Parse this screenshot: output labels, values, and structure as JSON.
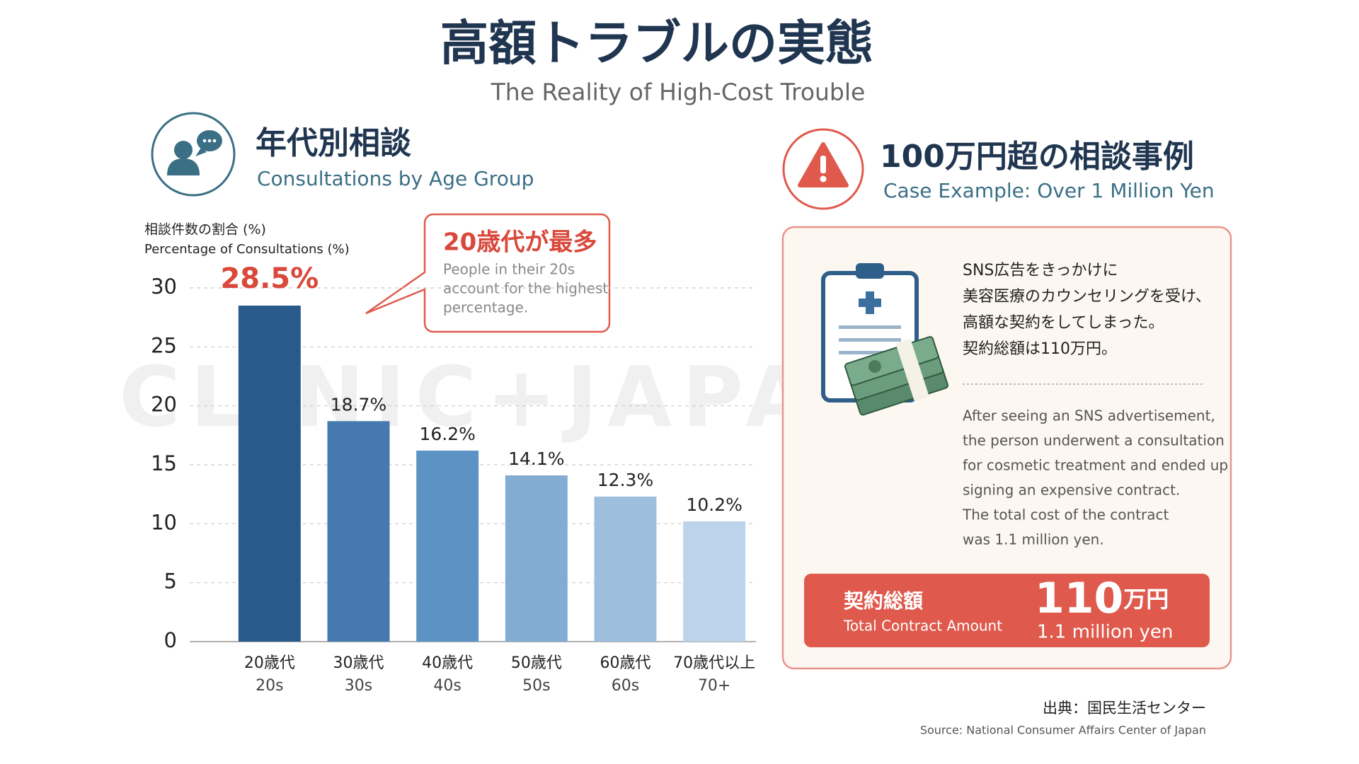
{
  "title": "高額トラブルの実態",
  "subtitle": "The Reality of High-Cost Trouble",
  "watermark": "CLINIC+JAPAN.NET",
  "left_heading": {
    "title": "年代別相談",
    "subtitle": "Consultations by Age Group"
  },
  "chart_data": {
    "type": "bar",
    "ylabel": "相談件数の割合 (%)",
    "ylabel_en": "Percentage of Consultations (%)",
    "categories": [
      "20歳代",
      "30歳代",
      "40歳代",
      "50歳代",
      "60歳代",
      "70歳代以上"
    ],
    "categories_en": [
      "20s",
      "30s",
      "40s",
      "50s",
      "60s",
      "70+"
    ],
    "values": [
      28.5,
      18.7,
      16.2,
      14.1,
      12.3,
      10.2
    ],
    "value_labels": [
      "28.5%",
      "18.7%",
      "16.2%",
      "14.1%",
      "12.3%",
      "10.2%"
    ],
    "colors": [
      "#285a8c",
      "#4679b0",
      "#5d93c4",
      "#83acd3",
      "#9dbedd",
      "#bdd3eb"
    ],
    "ylim": [
      0,
      30
    ],
    "yticks": [
      0,
      5,
      10,
      15,
      20,
      25,
      30
    ],
    "grid": true,
    "annotation": {
      "title": "20歳代が最多",
      "text": [
        "People in their 20s",
        "account for the highest",
        "percentage."
      ]
    }
  },
  "case": {
    "title": "100万円超の相談事例",
    "subtitle": "Case Example: Over 1 Million Yen",
    "text_jp": [
      "SNS広告をきっかけに",
      "美容医療のカウンセリングを受け、",
      "高額な契約をしてしまった。",
      "契約総額は110万円。"
    ],
    "text_en": [
      "After seeing an SNS advertisement,",
      "the person underwent a consultation",
      "for cosmetic treatment and ended up",
      "signing an expensive contract.",
      "The total cost of the contract",
      "was 1.1 million yen."
    ],
    "amount": {
      "label": "契約総額",
      "label_en": "Total Contract Amount",
      "number": "110",
      "unit": "万円",
      "en": "1.1 million yen"
    }
  },
  "source": {
    "jp": "出典：国民生活センター",
    "en": "Source: National Consumer Affairs Center of Japan"
  }
}
